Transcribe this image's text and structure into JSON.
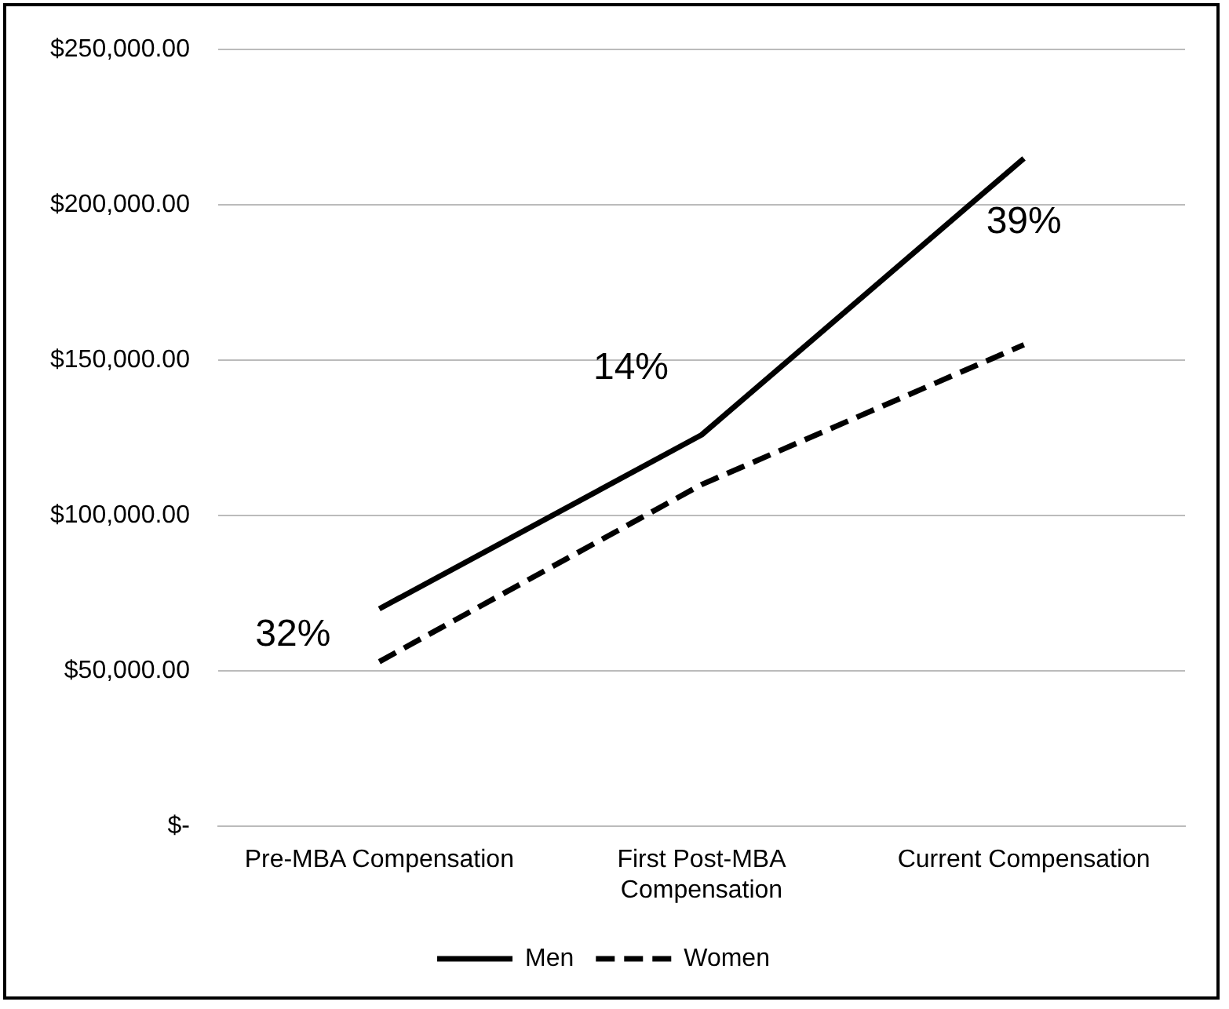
{
  "chart_data": {
    "type": "line",
    "categories": [
      "Pre-MBA Compensation",
      "First Post-MBA Compensation",
      "Current Compensation"
    ],
    "series": [
      {
        "name": "Men",
        "color": "#000000",
        "values": [
          70000,
          126000,
          215000
        ],
        "line_style": "solid"
      },
      {
        "name": "Women",
        "color": "#000000",
        "values": [
          53000,
          110000,
          155000
        ],
        "line_style": "dashed"
      }
    ],
    "ylim": [
      0,
      250000
    ],
    "yticks": [
      {
        "value": 0,
        "label": "$-"
      },
      {
        "value": 50000,
        "label": "$50,000.00"
      },
      {
        "value": 100000,
        "label": "$100,000.00"
      },
      {
        "value": 150000,
        "label": "$150,000.00"
      },
      {
        "value": 200000,
        "label": "$200,000.00"
      },
      {
        "value": 250000,
        "label": "$250,000.00"
      }
    ],
    "grid": "y",
    "legend": "bottom",
    "marker": "none",
    "annotations": [
      "32%",
      "14%",
      "39%"
    ]
  }
}
